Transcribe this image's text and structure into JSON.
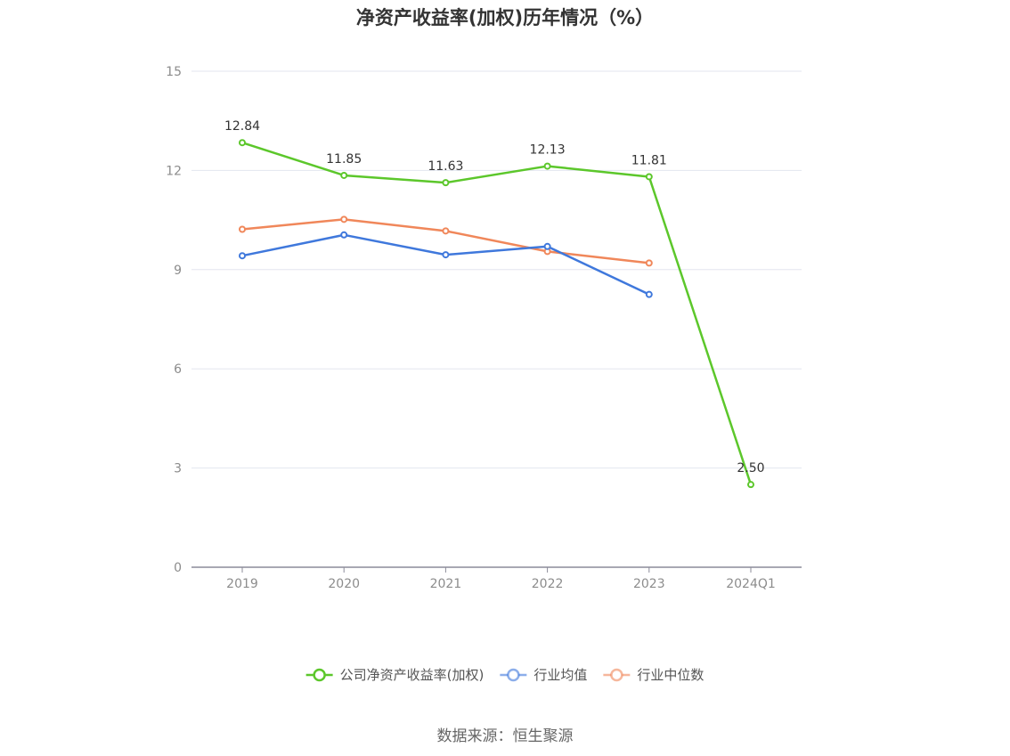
{
  "chart_data": {
    "type": "line",
    "title": "净资产收益率(加权)历年情况（%）",
    "categories": [
      "2019",
      "2020",
      "2021",
      "2022",
      "2023",
      "2024Q1"
    ],
    "ylim": [
      0,
      15
    ],
    "yticks": [
      0,
      3,
      6,
      9,
      12,
      15
    ],
    "grid": true,
    "legend_position": "bottom",
    "series": [
      {
        "name": "公司净资产收益率(加权)",
        "color": "#5cc72b",
        "values": [
          12.84,
          11.85,
          11.63,
          12.13,
          11.81,
          2.5
        ],
        "labels": [
          "12.84",
          "11.85",
          "11.63",
          "12.13",
          "11.81",
          "2.50"
        ]
      },
      {
        "name": "行业均值",
        "color": "#3f78dc",
        "values": [
          9.42,
          10.05,
          9.45,
          9.7,
          8.25,
          null
        ]
      },
      {
        "name": "行业中位数",
        "color": "#f0875a",
        "values": [
          10.22,
          10.52,
          10.17,
          9.55,
          9.2,
          null
        ]
      }
    ]
  },
  "source": "数据来源：恒生聚源"
}
